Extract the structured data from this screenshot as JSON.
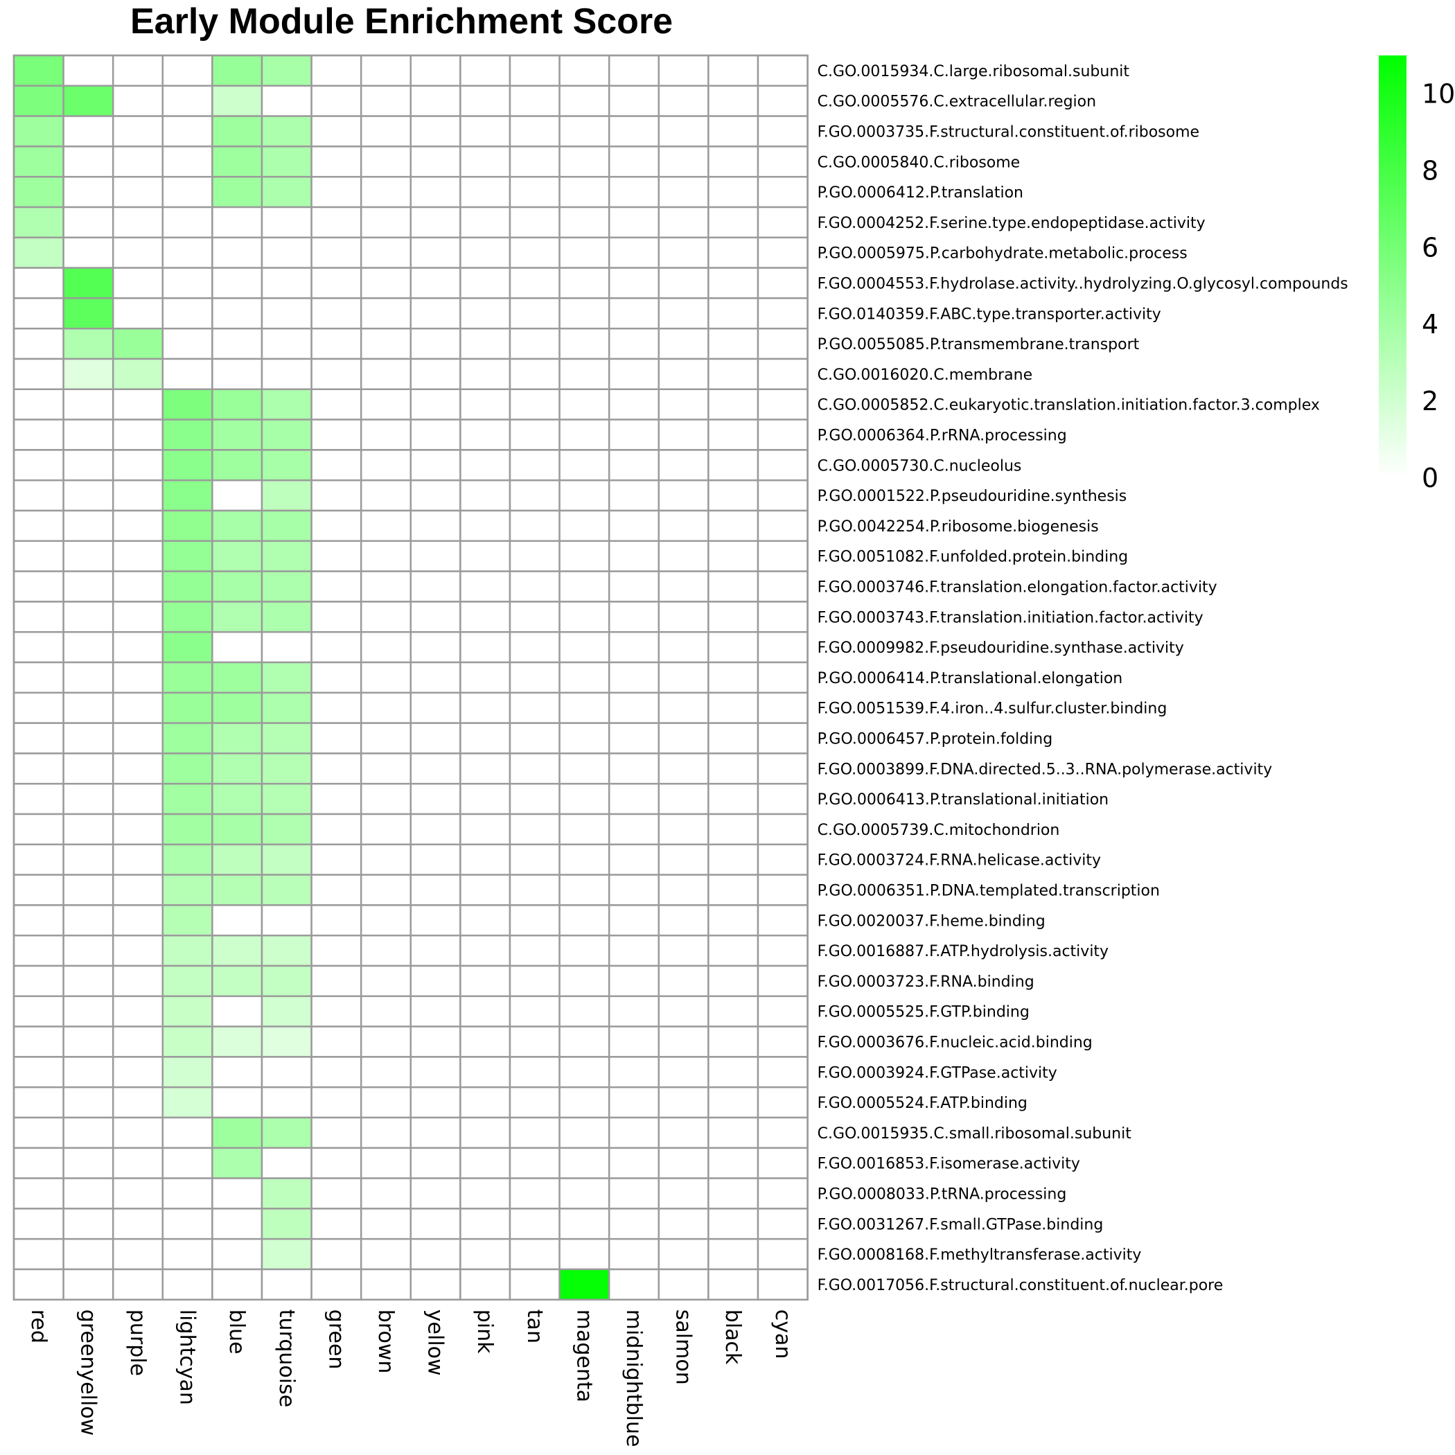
{
  "chart_data": {
    "type": "heatmap",
    "title": "Early Module Enrichment Score",
    "columns": [
      "red",
      "greenyellow",
      "purple",
      "lightcyan",
      "blue",
      "turquoise",
      "green",
      "brown",
      "yellow",
      "pink",
      "tan",
      "magenta",
      "midnightblue",
      "salmon",
      "black",
      "cyan"
    ],
    "rows": [
      "C.GO.0015934.C.large.ribosomal.subunit",
      "C.GO.0005576.C.extracellular.region",
      "F.GO.0003735.F.structural.constituent.of.ribosome",
      "C.GO.0005840.C.ribosome",
      "P.GO.0006412.P.translation",
      "F.GO.0004252.F.serine.type.endopeptidase.activity",
      "P.GO.0005975.P.carbohydrate.metabolic.process",
      "F.GO.0004553.F.hydrolase.activity..hydrolyzing.O.glycosyl.compounds",
      "F.GO.0140359.F.ABC.type.transporter.activity",
      "P.GO.0055085.P.transmembrane.transport",
      "C.GO.0016020.C.membrane",
      "C.GO.0005852.C.eukaryotic.translation.initiation.factor.3.complex",
      "P.GO.0006364.P.rRNA.processing",
      "C.GO.0005730.C.nucleolus",
      "P.GO.0001522.P.pseudouridine.synthesis",
      "P.GO.0042254.P.ribosome.biogenesis",
      "F.GO.0051082.F.unfolded.protein.binding",
      "F.GO.0003746.F.translation.elongation.factor.activity",
      "F.GO.0003743.F.translation.initiation.factor.activity",
      "F.GO.0009982.F.pseudouridine.synthase.activity",
      "P.GO.0006414.P.translational.elongation",
      "F.GO.0051539.F.4.iron..4.sulfur.cluster.binding",
      "P.GO.0006457.P.protein.folding",
      "F.GO.0003899.F.DNA.directed.5..3..RNA.polymerase.activity",
      "P.GO.0006413.P.translational.initiation",
      "C.GO.0005739.C.mitochondrion",
      "F.GO.0003724.F.RNA.helicase.activity",
      "P.GO.0006351.P.DNA.templated.transcription",
      "F.GO.0020037.F.heme.binding",
      "F.GO.0016887.F.ATP.hydrolysis.activity",
      "F.GO.0003723.F.RNA.binding",
      "F.GO.0005525.F.GTP.binding",
      "F.GO.0003676.F.nucleic.acid.binding",
      "F.GO.0003924.F.GTPase.activity",
      "F.GO.0005524.F.ATP.binding",
      "C.GO.0015935.C.small.ribosomal.subunit",
      "F.GO.0016853.F.isomerase.activity",
      "P.GO.0008033.P.tRNA.processing",
      "F.GO.0031267.F.small.GTPase.binding",
      "F.GO.0008168.F.methyltransferase.activity",
      "F.GO.0017056.F.structural.constituent.of.nuclear.pore"
    ],
    "values": [
      [
        5.8,
        0,
        0,
        0,
        4.5,
        3.8,
        0,
        0,
        0,
        0,
        0,
        0,
        0,
        0,
        0,
        0
      ],
      [
        5.6,
        6.4,
        0,
        0,
        2.2,
        0,
        0,
        0,
        0,
        0,
        0,
        0,
        0,
        0,
        0,
        0
      ],
      [
        4.2,
        0,
        0,
        0,
        4.2,
        3.6,
        0,
        0,
        0,
        0,
        0,
        0,
        0,
        0,
        0,
        0
      ],
      [
        4.2,
        0,
        0,
        0,
        4.2,
        3.6,
        0,
        0,
        0,
        0,
        0,
        0,
        0,
        0,
        0,
        0
      ],
      [
        4.2,
        0,
        0,
        0,
        4.2,
        3.6,
        0,
        0,
        0,
        0,
        0,
        0,
        0,
        0,
        0,
        0
      ],
      [
        3.4,
        0,
        0,
        0,
        0,
        0,
        0,
        0,
        0,
        0,
        0,
        0,
        0,
        0,
        0,
        0
      ],
      [
        2.6,
        0,
        0,
        0,
        0,
        0,
        0,
        0,
        0,
        0,
        0,
        0,
        0,
        0,
        0,
        0
      ],
      [
        0,
        7.4,
        0,
        0,
        0,
        0,
        0,
        0,
        0,
        0,
        0,
        0,
        0,
        0,
        0,
        0
      ],
      [
        0,
        7.0,
        0,
        0,
        0,
        0,
        0,
        0,
        0,
        0,
        0,
        0,
        0,
        0,
        0,
        0
      ],
      [
        0,
        3.4,
        4.4,
        0,
        0,
        0,
        0,
        0,
        0,
        0,
        0,
        0,
        0,
        0,
        0,
        0
      ],
      [
        0,
        1.4,
        2.4,
        0,
        0,
        0,
        0,
        0,
        0,
        0,
        0,
        0,
        0,
        0,
        0,
        0
      ],
      [
        0,
        0,
        0,
        5.6,
        4.4,
        3.6,
        0,
        0,
        0,
        0,
        0,
        0,
        0,
        0,
        0,
        0
      ],
      [
        0,
        0,
        0,
        5.0,
        4.0,
        3.8,
        0,
        0,
        0,
        0,
        0,
        0,
        0,
        0,
        0,
        0
      ],
      [
        0,
        0,
        0,
        5.0,
        4.2,
        3.8,
        0,
        0,
        0,
        0,
        0,
        0,
        0,
        0,
        0,
        0
      ],
      [
        0,
        0,
        0,
        5.0,
        0,
        2.8,
        0,
        0,
        0,
        0,
        0,
        0,
        0,
        0,
        0,
        0
      ],
      [
        0,
        0,
        0,
        4.8,
        3.8,
        3.8,
        0,
        0,
        0,
        0,
        0,
        0,
        0,
        0,
        0,
        0
      ],
      [
        0,
        0,
        0,
        4.6,
        3.4,
        3.4,
        0,
        0,
        0,
        0,
        0,
        0,
        0,
        0,
        0,
        0
      ],
      [
        0,
        0,
        0,
        4.6,
        3.8,
        3.6,
        0,
        0,
        0,
        0,
        0,
        0,
        0,
        0,
        0,
        0
      ],
      [
        0,
        0,
        0,
        4.6,
        3.4,
        3.6,
        0,
        0,
        0,
        0,
        0,
        0,
        0,
        0,
        0,
        0
      ],
      [
        0,
        0,
        0,
        5.0,
        0,
        0,
        0,
        0,
        0,
        0,
        0,
        0,
        0,
        0,
        0,
        0
      ],
      [
        0,
        0,
        0,
        4.4,
        4.2,
        3.4,
        0,
        0,
        0,
        0,
        0,
        0,
        0,
        0,
        0,
        0
      ],
      [
        0,
        0,
        0,
        4.4,
        4.2,
        3.6,
        0,
        0,
        0,
        0,
        0,
        0,
        0,
        0,
        0,
        0
      ],
      [
        0,
        0,
        0,
        4.2,
        3.4,
        3.2,
        0,
        0,
        0,
        0,
        0,
        0,
        0,
        0,
        0,
        0
      ],
      [
        0,
        0,
        0,
        4.2,
        3.4,
        3.2,
        0,
        0,
        0,
        0,
        0,
        0,
        0,
        0,
        0,
        0
      ],
      [
        0,
        0,
        0,
        4.0,
        3.4,
        3.2,
        0,
        0,
        0,
        0,
        0,
        0,
        0,
        0,
        0,
        0
      ],
      [
        0,
        0,
        0,
        4.0,
        3.8,
        3.4,
        0,
        0,
        0,
        0,
        0,
        0,
        0,
        0,
        0,
        0
      ],
      [
        0,
        0,
        0,
        3.6,
        2.8,
        2.6,
        0,
        0,
        0,
        0,
        0,
        0,
        0,
        0,
        0,
        0
      ],
      [
        0,
        0,
        0,
        3.2,
        3.2,
        3.0,
        0,
        0,
        0,
        0,
        0,
        0,
        0,
        0,
        0,
        0
      ],
      [
        0,
        0,
        0,
        3.2,
        0,
        0,
        0,
        0,
        0,
        0,
        0,
        0,
        0,
        0,
        0,
        0
      ],
      [
        0,
        0,
        0,
        2.6,
        2.2,
        2.2,
        0,
        0,
        0,
        0,
        0,
        0,
        0,
        0,
        0,
        0
      ],
      [
        0,
        0,
        0,
        2.6,
        2.6,
        2.6,
        0,
        0,
        0,
        0,
        0,
        0,
        0,
        0,
        0,
        0
      ],
      [
        0,
        0,
        0,
        2.4,
        0,
        2.0,
        0,
        0,
        0,
        0,
        0,
        0,
        0,
        0,
        0,
        0
      ],
      [
        0,
        0,
        0,
        2.4,
        1.6,
        1.4,
        0,
        0,
        0,
        0,
        0,
        0,
        0,
        0,
        0,
        0
      ],
      [
        0,
        0,
        0,
        2.0,
        0,
        0,
        0,
        0,
        0,
        0,
        0,
        0,
        0,
        0,
        0,
        0
      ],
      [
        0,
        0,
        0,
        1.8,
        0,
        0,
        0,
        0,
        0,
        0,
        0,
        0,
        0,
        0,
        0,
        0
      ],
      [
        0,
        0,
        0,
        0,
        4.2,
        3.6,
        0,
        0,
        0,
        0,
        0,
        0,
        0,
        0,
        0,
        0
      ],
      [
        0,
        0,
        0,
        0,
        3.6,
        0,
        0,
        0,
        0,
        0,
        0,
        0,
        0,
        0,
        0,
        0
      ],
      [
        0,
        0,
        0,
        0,
        0,
        2.8,
        0,
        0,
        0,
        0,
        0,
        0,
        0,
        0,
        0,
        0
      ],
      [
        0,
        0,
        0,
        0,
        0,
        2.8,
        0,
        0,
        0,
        0,
        0,
        0,
        0,
        0,
        0,
        0
      ],
      [
        0,
        0,
        0,
        0,
        0,
        2.0,
        0,
        0,
        0,
        0,
        0,
        0,
        0,
        0,
        0,
        0
      ],
      [
        0,
        0,
        0,
        0,
        0,
        0,
        0,
        0,
        0,
        0,
        0,
        10.8,
        0,
        0,
        0,
        0
      ]
    ],
    "color_scale": {
      "min": 0,
      "max": 11,
      "low_color": "#ffffff",
      "high_color": "#00ff00",
      "ticks": [
        0,
        2,
        4,
        6,
        8,
        10
      ]
    },
    "grid_color": "#9b9b9b",
    "legend": "top-right"
  }
}
